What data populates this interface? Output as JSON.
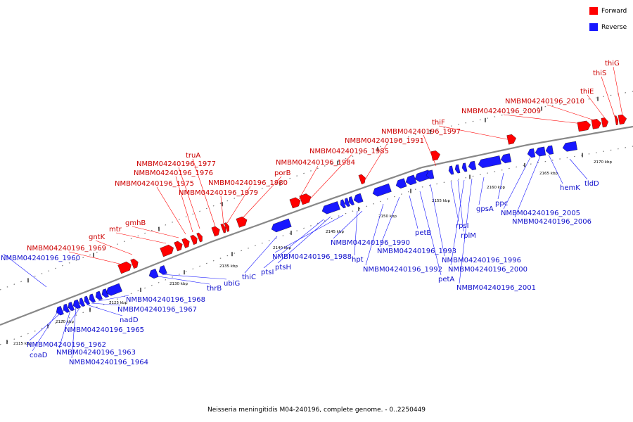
{
  "legend": {
    "forward": "Forward",
    "reverse": "Reverse"
  },
  "colors": {
    "forward": "#ff0000",
    "reverse": "#1818ff",
    "backbone": "#888888",
    "forward_label": "#cc0000",
    "reverse_label": "#1010cc"
  },
  "caption": "Neisseria meningitidis M04-240196, complete genome. - 0..2250449",
  "ticks": [
    "2115 kbp",
    "2120 kbp",
    "2125 kbp",
    "2130 kbp",
    "2135 kbp",
    "2140 kbp",
    "2145 kbp",
    "2150 kbp",
    "2155 kbp",
    "2160 kbp",
    "2165 kbp",
    "2170 kbp"
  ],
  "forward_genes": [
    "NMBM04240196_1969",
    "gntK",
    "mtr",
    "gmhB",
    "NMBM04240196_1975",
    "NMBM04240196_1976",
    "NMBM04240196_1977",
    "truA",
    "NMBM04240196_1979",
    "NMBM04240196_1980",
    "porB",
    "NMBM04240196_1984",
    "NMBM04240196_1985",
    "NMBM04240196_1991",
    "NMBM04240196_1997",
    "thiF",
    "NMBM04240196_2009",
    "NMBM04240196_2010",
    "thiE",
    "thiS",
    "thiG"
  ],
  "reverse_genes": [
    "NMBM04240196_1960",
    "coaD",
    "NMBM04240196_1962",
    "NMBM04240196_1963",
    "NMBM04240196_1964",
    "NMBM04240196_1965",
    "nadD",
    "NMBM04240196_1967",
    "NMBM04240196_1968",
    "thrB",
    "ubiG",
    "thiC",
    "ptsI",
    "ptsH",
    "NMBM04240196_1988",
    "hpt",
    "NMBM04240196_1990",
    "NMBM04240196_1992",
    "NMBM04240196_1993",
    "petB",
    "petA",
    "NMBM04240196_1996",
    "rpsI",
    "rplM",
    "NMBM04240196_2000",
    "NMBM04240196_2001",
    "gpsA",
    "ppc",
    "NMBM04240196_2005",
    "NMBM04240196_2006",
    "hemK",
    "tldD"
  ]
}
